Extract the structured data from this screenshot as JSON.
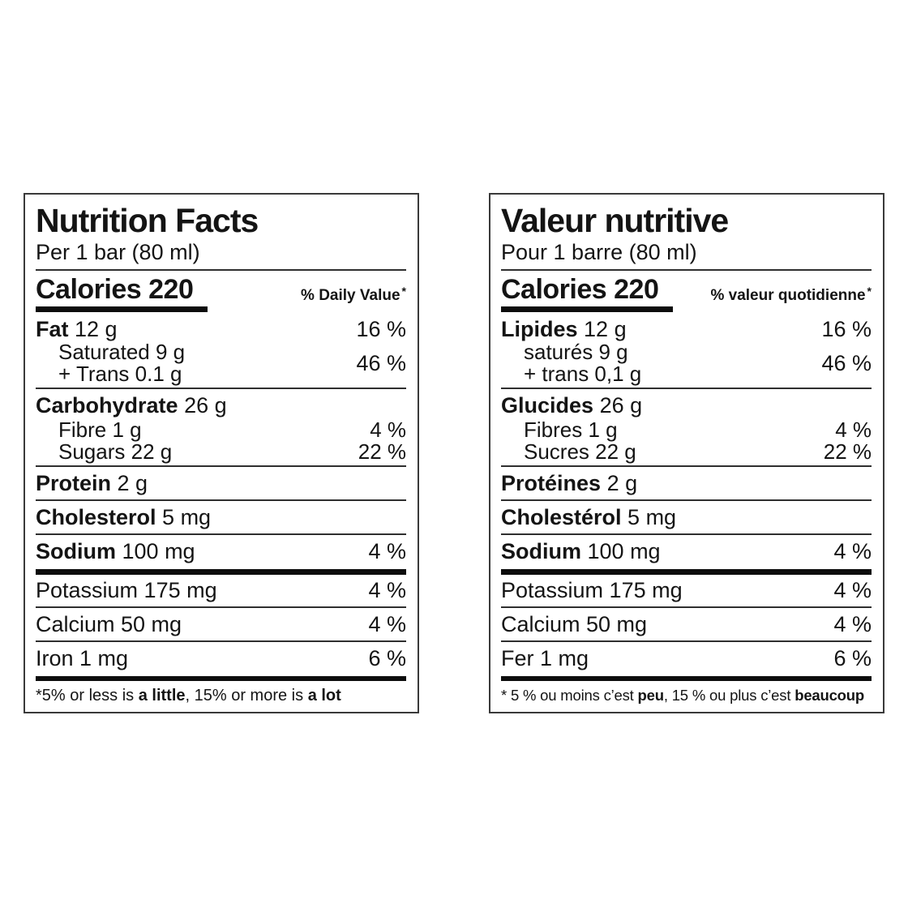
{
  "colors": {
    "ink": "#141414",
    "rule": "#2f2f2f",
    "thick_bar": "#0d0d0d",
    "background": "#ffffff",
    "panel_border": "#3a3a3a"
  },
  "en": {
    "title": "Nutrition Facts",
    "serving": "Per 1 bar (80 ml)",
    "calories": "Calories 220",
    "dv_header": "% Daily Value",
    "dv_mark": "*",
    "fat": {
      "name": "Fat",
      "amount": "12 g",
      "dv": "16 %",
      "sub1": "Saturated 9 g",
      "sub2": "+ Trans 0.1 g",
      "sub_dv": "46 %"
    },
    "carb": {
      "name": "Carbohydrate",
      "amount": "26 g",
      "sub1": "Fibre 1 g",
      "sub1_dv": "4 %",
      "sub2": "Sugars 22 g",
      "sub2_dv": "22 %"
    },
    "protein": {
      "name": "Protein",
      "amount": "2 g"
    },
    "cholesterol": {
      "name": "Cholesterol",
      "amount": "5 mg"
    },
    "sodium": {
      "name": "Sodium",
      "amount": "100 mg",
      "dv": "4 %"
    },
    "potassium": {
      "label": "Potassium 175 mg",
      "dv": "4 %"
    },
    "calcium": {
      "label": "Calcium 50 mg",
      "dv": "4 %"
    },
    "iron": {
      "label": "Iron 1 mg",
      "dv": "6 %"
    },
    "footnote": {
      "pre": "*5% or less is ",
      "bold1": "a little",
      "mid": ", 15% or more is ",
      "bold2": "a lot"
    }
  },
  "fr": {
    "title": "Valeur nutritive",
    "serving": "Pour 1 barre (80 ml)",
    "calories": "Calories 220",
    "dv_header": "% valeur quotidienne",
    "dv_mark": "*",
    "fat": {
      "name": "Lipides",
      "amount": "12 g",
      "dv": "16 %",
      "sub1": "saturés 9 g",
      "sub2": "+ trans 0,1 g",
      "sub_dv": "46 %"
    },
    "carb": {
      "name": "Glucides",
      "amount": "26 g",
      "sub1": "Fibres 1 g",
      "sub1_dv": "4 %",
      "sub2": "Sucres 22 g",
      "sub2_dv": "22 %"
    },
    "protein": {
      "name": "Protéines",
      "amount": "2 g"
    },
    "cholesterol": {
      "name": "Cholestérol",
      "amount": "5 mg"
    },
    "sodium": {
      "name": "Sodium",
      "amount": "100 mg",
      "dv": "4 %"
    },
    "potassium": {
      "label": "Potassium 175 mg",
      "dv": "4 %"
    },
    "calcium": {
      "label": "Calcium 50 mg",
      "dv": "4 %"
    },
    "iron": {
      "label": "Fer 1 mg",
      "dv": "6 %"
    },
    "footnote": {
      "pre": "* 5 % ou moins c’est ",
      "bold1": "peu",
      "mid": ", 15 % ou plus c’est ",
      "bold2": "beaucoup"
    }
  }
}
